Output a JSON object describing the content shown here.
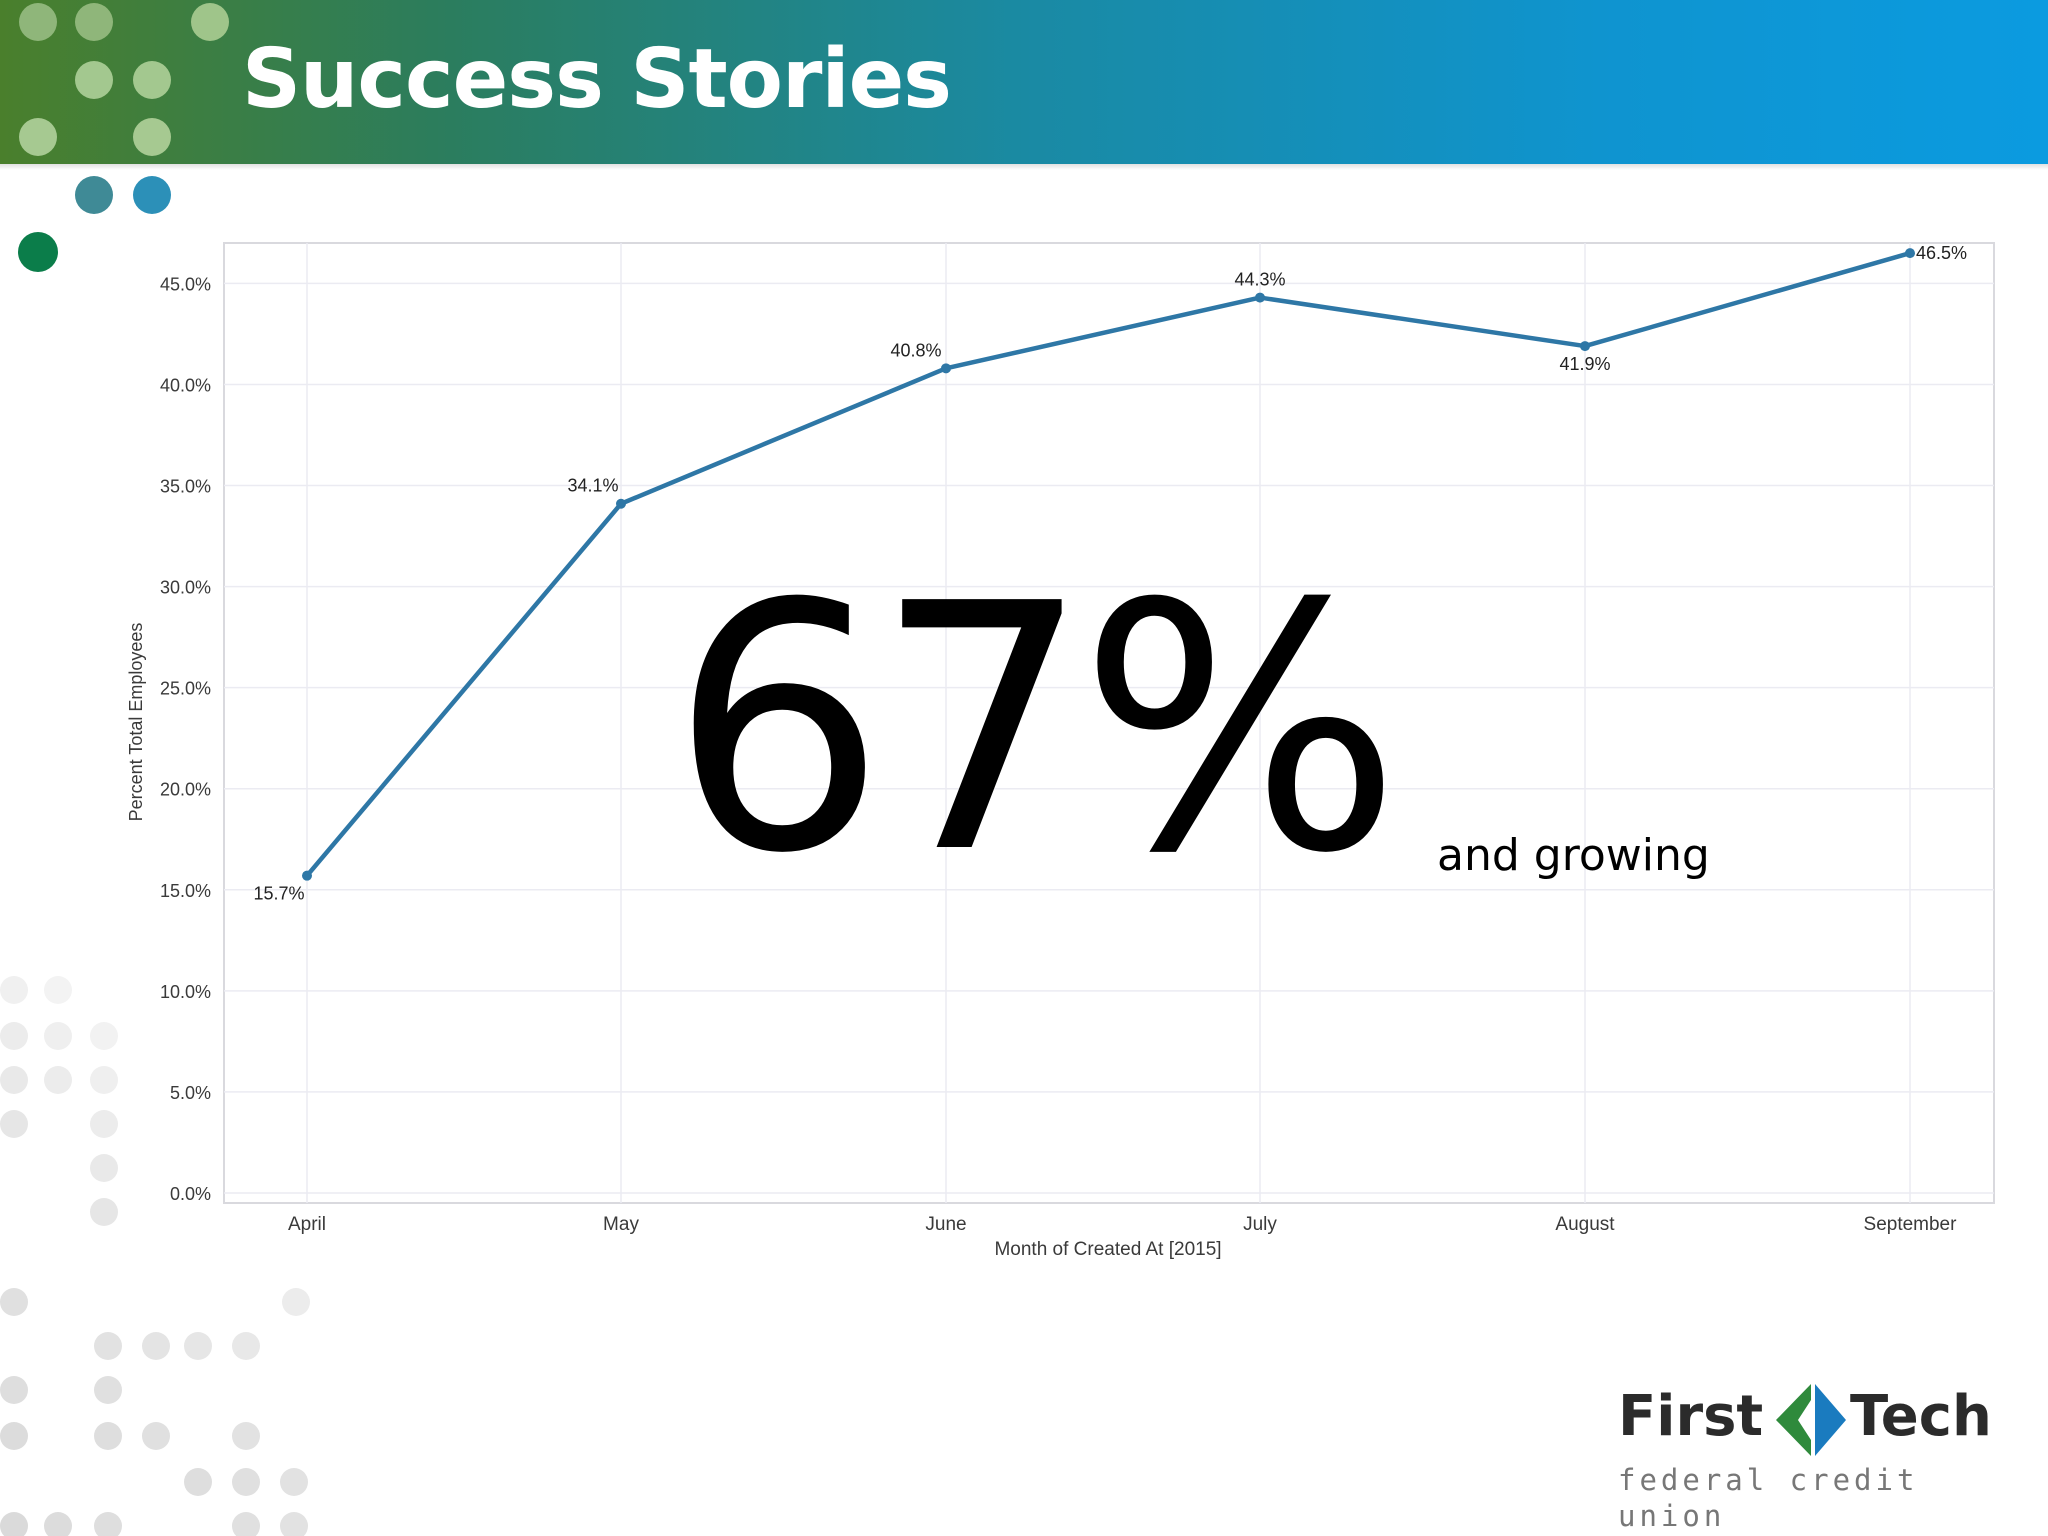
{
  "slide": {
    "title": "Success Stories"
  },
  "highlight": {
    "value": "67%",
    "caption": "and growing"
  },
  "logo": {
    "first": "First",
    "tech": "Tech",
    "tagline": "federal credit union"
  },
  "colors": {
    "line": "#2e77a6",
    "grid": "#ebebf2",
    "axis_text": "#3a3a3a",
    "logo_green": "#2f8a3c",
    "logo_blue": "#1a7bbf"
  },
  "chart_data": {
    "type": "line",
    "title": "",
    "xlabel": "Month of Created At [2015]",
    "ylabel": "Percent Total Employees",
    "categories": [
      "April",
      "May",
      "June",
      "July",
      "August",
      "September"
    ],
    "series": [
      {
        "values": [
          15.7,
          34.1,
          40.8,
          44.3,
          41.9,
          46.5
        ]
      }
    ],
    "data_labels": [
      "15.7%",
      "34.1%",
      "40.8%",
      "44.3%",
      "41.9%",
      "46.5%"
    ],
    "ylim": [
      0,
      47
    ],
    "yticks": [
      0,
      5,
      10,
      15,
      20,
      25,
      30,
      35,
      40,
      45
    ],
    "ytick_labels": [
      "0.0%",
      "5.0%",
      "10.0%",
      "15.0%",
      "20.0%",
      "25.0%",
      "30.0%",
      "35.0%",
      "40.0%",
      "45.0%"
    ],
    "grid": true,
    "legend": "none"
  }
}
